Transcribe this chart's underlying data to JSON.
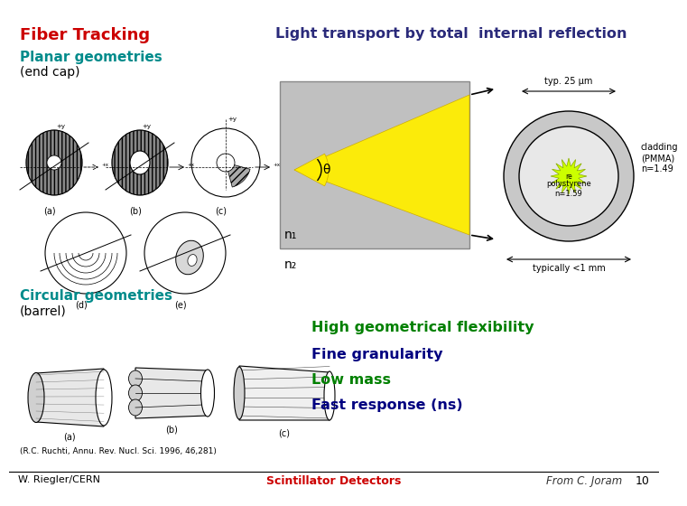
{
  "title_fiber": "Fiber Tracking",
  "title_light": "Light transport by total  internal reflection",
  "planar_title": "Planar geometries",
  "planar_sub": "(end cap)",
  "circular_title": "Circular geometries",
  "circular_sub": "(barrel)",
  "bullet1": "High geometrical flexibility",
  "bullet2": "Fine granularity",
  "bullet3": "Low mass",
  "bullet4": "Fast response (ns)",
  "ref": "(R.C. Ruchti, Annu. Rev. Nucl. Sci. 1996, 46,281)",
  "footer_left": "W. Riegler/CERN",
  "footer_center": "Scintillator Detectors",
  "footer_right": "From C. Joram",
  "page_num": "10",
  "typ_label": "typ. 25 μm",
  "cladding_label": "cladding\n(PMMA)\nn=1.49",
  "polystyrene_label": "polystyrene\nn=1.59",
  "typically_label": "typically <1 mm",
  "n1_label": "n₁",
  "n2_label": "n₂",
  "theta_label": "θ",
  "bg_color": "#ffffff",
  "title_fiber_color": "#cc0000",
  "title_light_color": "#2a2a7a",
  "planar_color": "#008b8b",
  "circular_color": "#008b8b",
  "bullet1_color": "#008000",
  "bullet2_color": "#000080",
  "bullet3_color": "#008000",
  "bullet4_color": "#000080",
  "footer_center_color": "#cc0000",
  "footer_right_color": "#333333",
  "sub_color": "#000000",
  "gray_diagram": "#aaaaaa",
  "light_gray": "#cccccc",
  "yellow": "#ffee00"
}
